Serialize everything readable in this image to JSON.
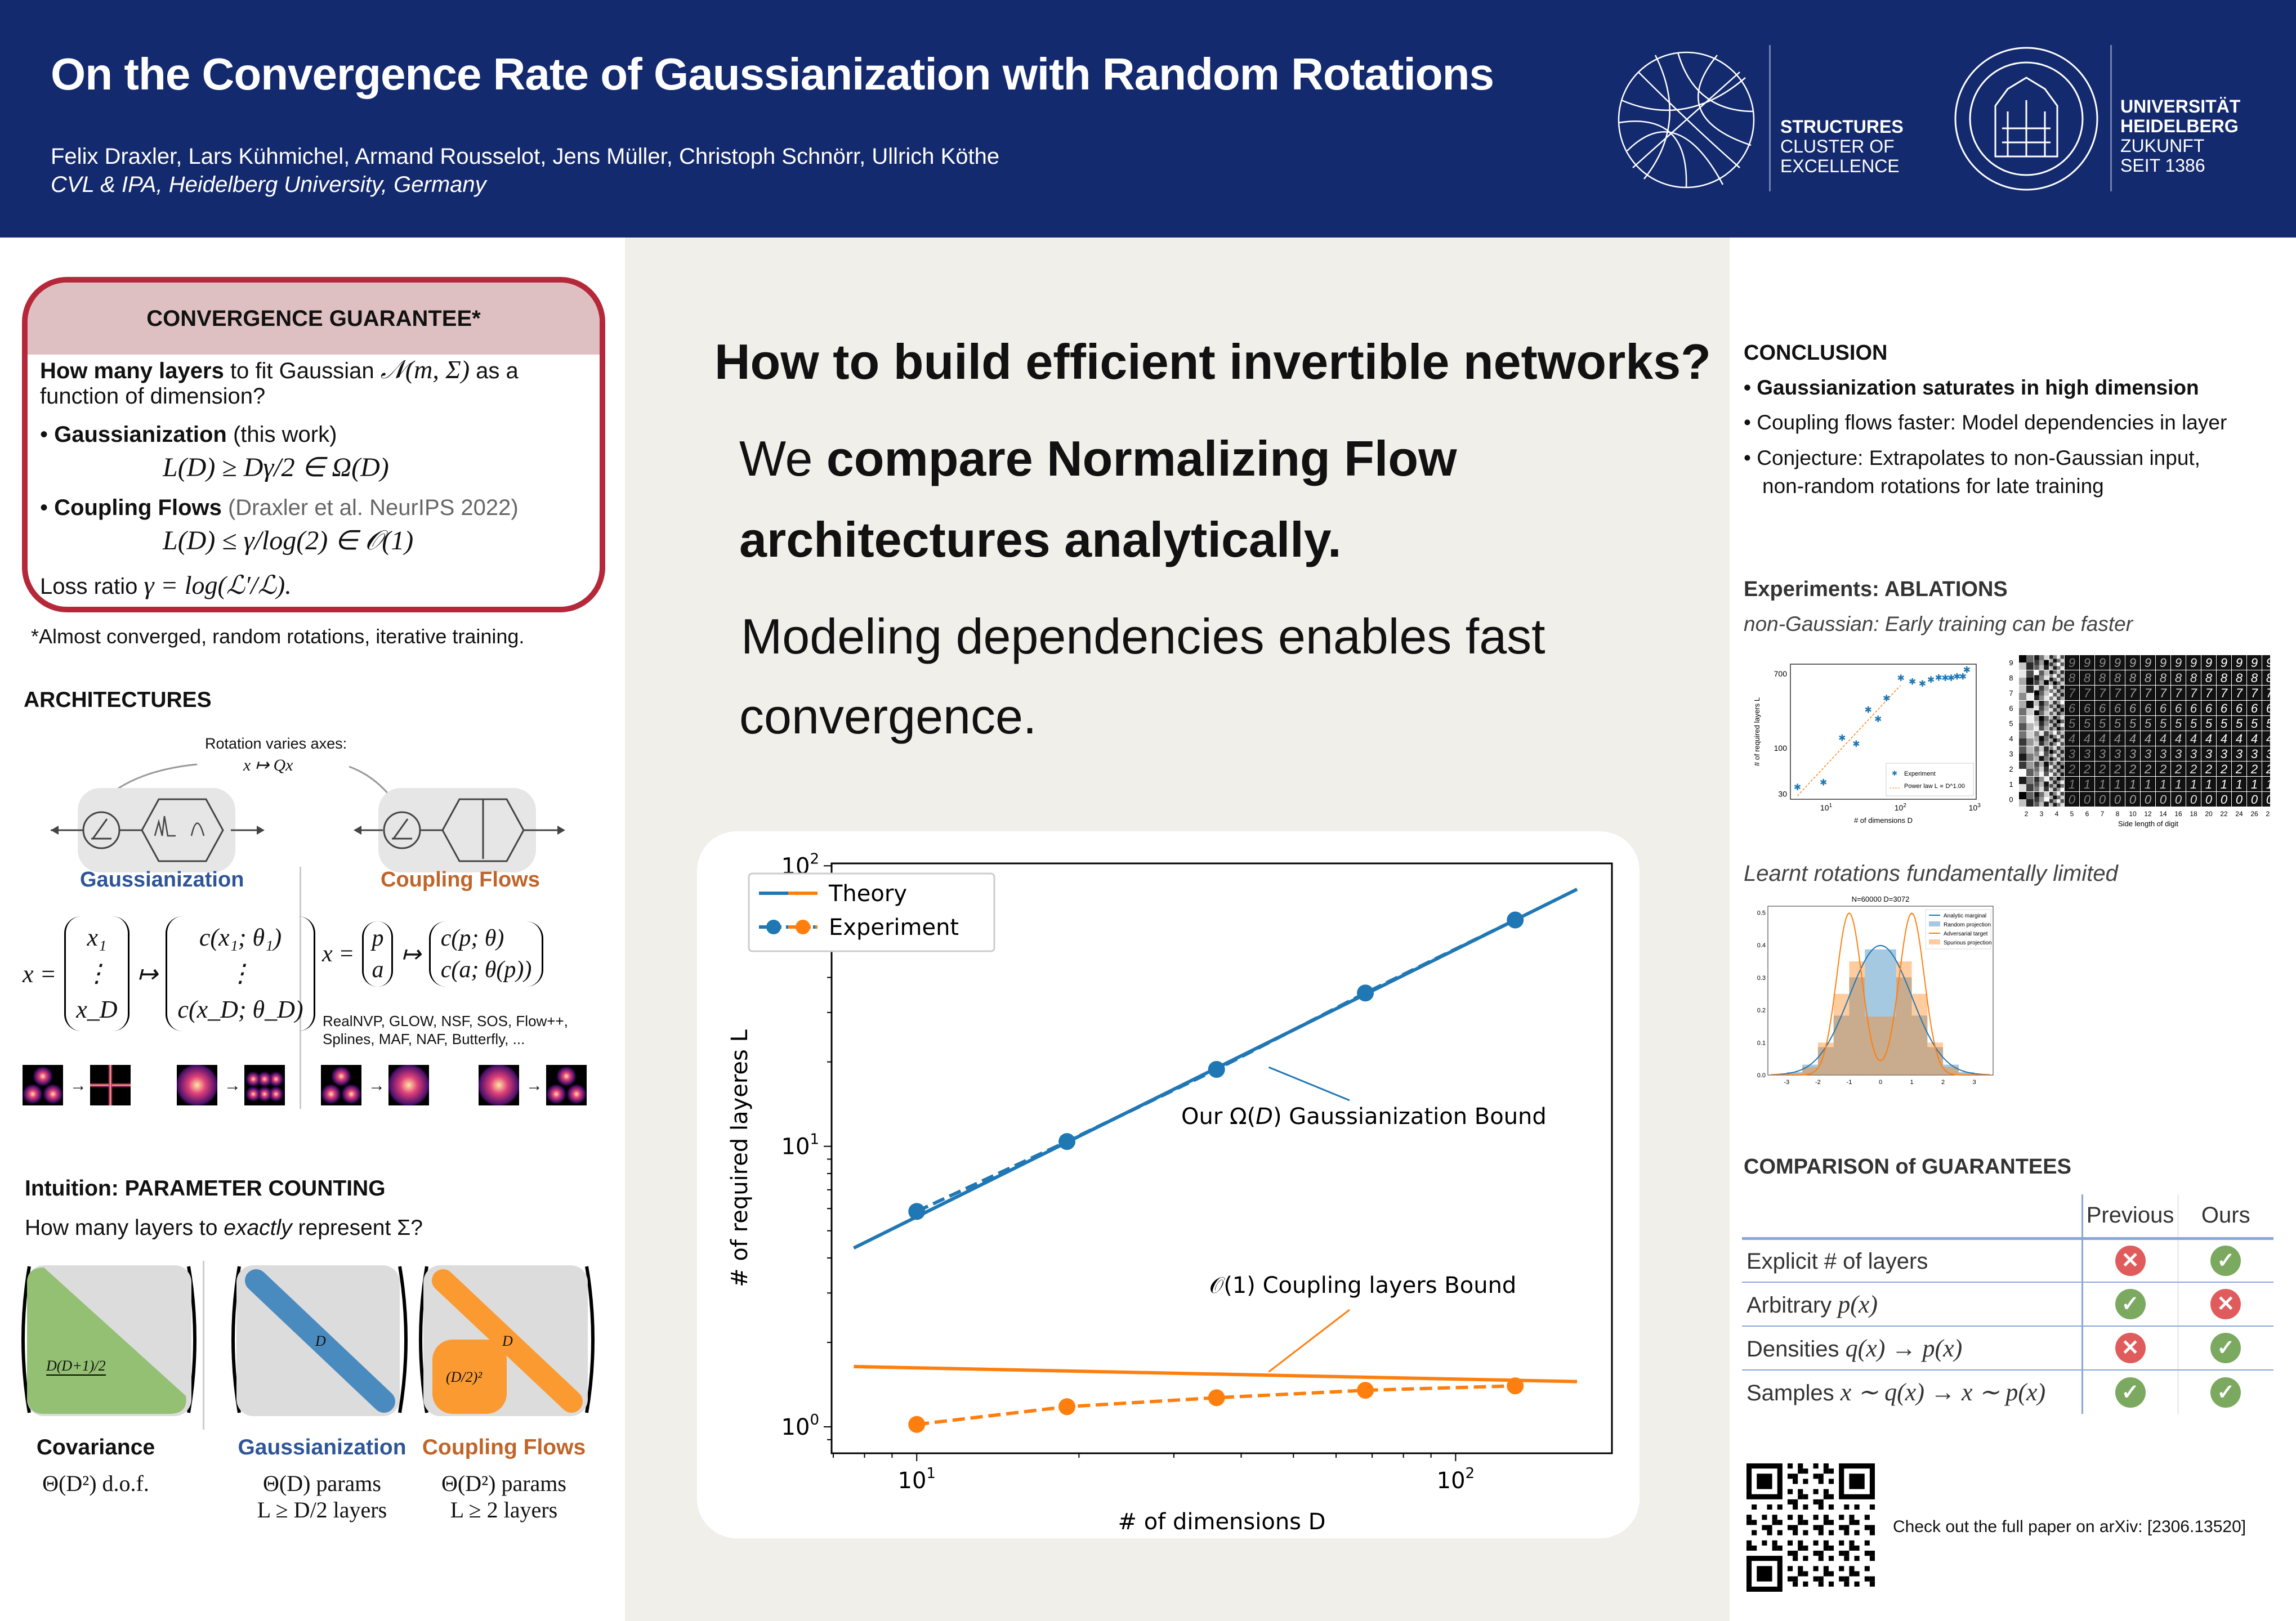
{
  "header": {
    "title": "On the Convergence Rate of Gaussianization with Random Rotations",
    "authors": "Felix Draxler, Lars Kühmichel, Armand Rousselot, Jens Müller, Christoph Schnörr, Ullrich Köthe",
    "affiliation": "CVL & IPA, Heidelberg University, Germany",
    "logo_structures": [
      "STRUCTURES",
      "CLUSTER OF",
      "EXCELLENCE"
    ],
    "logo_heidelberg": [
      "UNIVERSITÄT",
      "HEIDELBERG",
      "ZUKUNFT",
      "SEIT 1386"
    ],
    "bg_color": "#142a6e"
  },
  "convergence": {
    "title": "CONVERGENCE GUARANTEE*",
    "q_bold": "How many layers",
    "q_rest": " to fit Gaussian ",
    "q_math": "𝒩(m, Σ)",
    "q_end": " as a",
    "q_line2": "function of dimension?",
    "b1_bold": "Gaussianization",
    "b1_rest": " (this work)",
    "f1": "L(D) ≥  Dγ/2  ∈ Ω(D)",
    "b2_bold": "Coupling Flows",
    "b2_rest": " (Draxler et al. NeurIPS 2022)",
    "f2": "L(D) ≤ γ/log(2) ∈ 𝒪(1)",
    "loss_text": "Loss ratio ",
    "loss_math": "γ = log(ℒ′/ℒ).",
    "footnote": "*Almost converged, random rotations, iterative training.",
    "border_color": "#b5283a"
  },
  "architectures": {
    "title": "ARCHITECTURES",
    "rotation_note": "Rotation varies axes:",
    "rotation_math": "x ↦ Qx",
    "gauss_label": "Gaussianization",
    "coupling_label": "Coupling Flows",
    "gauss_lhs": "x =",
    "gauss_vec": [
      "x₁",
      "⋮",
      "x_D"
    ],
    "gauss_map": [
      "c(x₁; θ₁)",
      "⋮",
      "c(x_D; θ_D)"
    ],
    "coupling_lhs": "x =",
    "coupling_vec": [
      "p",
      "a"
    ],
    "coupling_map": [
      "c(p; θ)",
      "c(a; θ(p))"
    ],
    "examples": [
      "RealNVP, GLOW, NSF, SOS, Flow++,",
      "Splines, MAF, NAF, Butterfly, ..."
    ]
  },
  "intuition": {
    "title": "Intuition: PARAMETER COUNTING",
    "question_a": "How many layers to ",
    "question_em": "exactly",
    "question_b": " represent Σ?",
    "cov_label": "D(D+1)/2",
    "gauss_label": "D",
    "coup_diag": "D",
    "coup_block": "(D/2)²",
    "cols": [
      {
        "name": "Covariance",
        "line1": "Θ(D²) d.o.f.",
        "line2": ""
      },
      {
        "name": "Gaussianization",
        "line1": "Θ(D) params",
        "line2": "L ≥ D/2 layers"
      },
      {
        "name": "Coupling Flows",
        "line1": "Θ(D²) params",
        "line2": "L ≥ 2 layers"
      }
    ],
    "colors": {
      "covariance": "#93c072",
      "gaussianization": "#4a8bbf",
      "coupling": "#fb9a30"
    }
  },
  "middle": {
    "heading": "How to build efficient invertible networks?",
    "line1_a": "We ",
    "line1_b": "compare Normalizing Flow",
    "line2": "architectures analytically.",
    "line3": "Modeling dependencies enables fast",
    "line4": "convergence."
  },
  "chart_data": [
    {
      "type": "line",
      "xlabel": "# of dimensions D",
      "ylabel": "# of required layeres L",
      "xscale": "log",
      "yscale": "log",
      "xlim": [
        6.95,
        195
      ],
      "ylim": [
        0.805,
        102
      ],
      "xticks": [
        {
          "v": 10,
          "label": "10",
          "exp": "1"
        },
        {
          "v": 100,
          "label": "10",
          "exp": "2"
        }
      ],
      "yticks": [
        {
          "v": 1,
          "label": "10",
          "exp": "0"
        },
        {
          "v": 10,
          "label": "10",
          "exp": "1"
        },
        {
          "v": 100,
          "label": "10",
          "exp": "2"
        }
      ],
      "legend": {
        "placement": "top-left",
        "entries": [
          "Theory",
          "Experiment"
        ]
      },
      "series": [
        {
          "name": "Theory",
          "group": "Gaussianization",
          "style": "solid",
          "color": "#1f77b4",
          "x": [
            7.64,
            168
          ],
          "y": [
            4.34,
            82.5
          ]
        },
        {
          "name": "Experiment",
          "group": "Gaussianization",
          "style": "dashed-markers",
          "color": "#1f77b4",
          "x": [
            10,
            19,
            36,
            68,
            129
          ],
          "y": [
            5.86,
            10.4,
            18.8,
            35.2,
            64.1
          ]
        },
        {
          "name": "Theory",
          "group": "Coupling",
          "style": "solid",
          "color": "#ff7f0e",
          "x": [
            7.64,
            168
          ],
          "y": [
            1.64,
            1.45
          ]
        },
        {
          "name": "Experiment",
          "group": "Coupling",
          "style": "dashed-markers",
          "color": "#ff7f0e",
          "x": [
            10,
            19,
            36,
            68,
            129
          ],
          "y": [
            1.02,
            1.18,
            1.27,
            1.35,
            1.4
          ]
        }
      ],
      "annotations": [
        {
          "text_a": "Our Ω(",
          "text_em": "D",
          "text_b": ") Gaussianization Bound",
          "arrow_to": [
            45,
            21
          ]
        },
        {
          "text_a": "𝒪(1) Coupling layers Bound",
          "arrow_to": [
            45,
            1.5
          ]
        }
      ]
    },
    {
      "type": "scatter",
      "xlabel": "# of dimensions D",
      "ylabel": "# of required layers L",
      "xscale": "log",
      "yscale": "log",
      "xlim": [
        3.3,
        1050
      ],
      "ylim": [
        26,
        900
      ],
      "yticks": [
        30,
        100,
        700
      ],
      "xticks": [
        {
          "v": 10,
          "label": "10",
          "exp": "1"
        },
        {
          "v": 100,
          "label": "10",
          "exp": "2"
        },
        {
          "v": 1000,
          "label": "10",
          "exp": "3"
        }
      ],
      "legend": {
        "placement": "bottom-right",
        "entries": [
          "Experiment",
          "Power law L ∝ D^1.00"
        ]
      },
      "points": {
        "x": [
          4.1,
          9.2,
          16.4,
          25.4,
          36.9,
          50,
          65,
          101.6,
          145,
          198,
          258,
          328,
          402,
          483,
          580,
          695,
          785
        ],
        "y": [
          36,
          40.8,
          131,
          112,
          275,
          215,
          371,
          630,
          573,
          544,
          603,
          638,
          630,
          630,
          656,
          656,
          782
        ]
      },
      "fit": {
        "x": [
          4.1,
          100
        ],
        "y": [
          28.4,
          514
        ]
      },
      "colors": {
        "points": "#1f77b4",
        "fit": "#ff7f0e"
      }
    },
    {
      "type": "heatmap",
      "xlabel": "Side length of digit",
      "rows": [
        "0",
        "1",
        "2",
        "3",
        "4",
        "5",
        "6",
        "7",
        "8",
        "9"
      ],
      "cols": [
        "2",
        "3",
        "4",
        "5",
        "6",
        "7",
        "8",
        "10",
        "12",
        "14",
        "16",
        "18",
        "20",
        "22",
        "24",
        "26",
        "28"
      ]
    },
    {
      "type": "histogram",
      "title": "N=60000 D=3072",
      "xlim": [
        -3.6,
        3.6
      ],
      "ylim": [
        0,
        0.52
      ],
      "xticks": [
        -3,
        -2,
        -1,
        0,
        1,
        2,
        3
      ],
      "yticks": [
        0.0,
        0.1,
        0.2,
        0.3,
        0.4,
        0.5
      ],
      "legend": {
        "placement": "top-right",
        "entries": [
          "Analytic marginal",
          "Random projection",
          "Adversarial target",
          "Spurious projection"
        ]
      },
      "bin_edges": [
        -3.5,
        -3.0,
        -2.5,
        -2.0,
        -1.5,
        -1.0,
        -0.5,
        0.0,
        0.5,
        1.0,
        1.5,
        2.0,
        2.5,
        3.0,
        3.5
      ],
      "random_projection": [
        0.002,
        0.009,
        0.032,
        0.086,
        0.183,
        0.301,
        0.387,
        0.387,
        0.301,
        0.183,
        0.086,
        0.032,
        0.009,
        0.002
      ],
      "spurious_projection": [
        0.001,
        0.005,
        0.025,
        0.1,
        0.25,
        0.35,
        0.18,
        0.18,
        0.35,
        0.25,
        0.1,
        0.025,
        0.005,
        0.001
      ],
      "analytic_marginal": {
        "mean": 0,
        "std": 1
      },
      "adversarial_target": {
        "means": [
          -1,
          1
        ],
        "std": 0.4,
        "weights": [
          0.5,
          0.5
        ]
      },
      "colors": {
        "blue": "#1f77b4",
        "orange": "#ff7f0e"
      }
    }
  ],
  "conclusion": {
    "title": "CONCLUSION",
    "b1": "Gaussianization saturates in high dimension",
    "b2": "Coupling flows faster: Model dependencies in layer",
    "b3a": "Conjecture: Extrapolates to non-Gaussian input,",
    "b3b": "non-random rotations for late training"
  },
  "experiments": {
    "title": "Experiments: ABLATIONS",
    "subtitle": "non-Gaussian: Early training can be faster",
    "subtitle2": "Learnt rotations fundamentally limited"
  },
  "comparison": {
    "title": "COMPARISON of GUARANTEES",
    "headers": [
      "Previous",
      "Ours"
    ],
    "rows": [
      {
        "label": "Explicit # of layers",
        "math": "",
        "previous": false,
        "ours": true
      },
      {
        "label": "Arbitrary ",
        "math": "p(x)",
        "previous": true,
        "ours": false
      },
      {
        "label": "Densities ",
        "math": "q(x) → p(x)",
        "previous": false,
        "ours": true
      },
      {
        "label": "Samples ",
        "math": "x ∼ q(x) → x ∼ p(x)",
        "previous": true,
        "ours": true
      }
    ],
    "check_color": "#7aa95f",
    "cross_color": "#e05c5c"
  },
  "footer": {
    "arxiv": "Check out the full paper on arXiv: [2306.13520]"
  }
}
